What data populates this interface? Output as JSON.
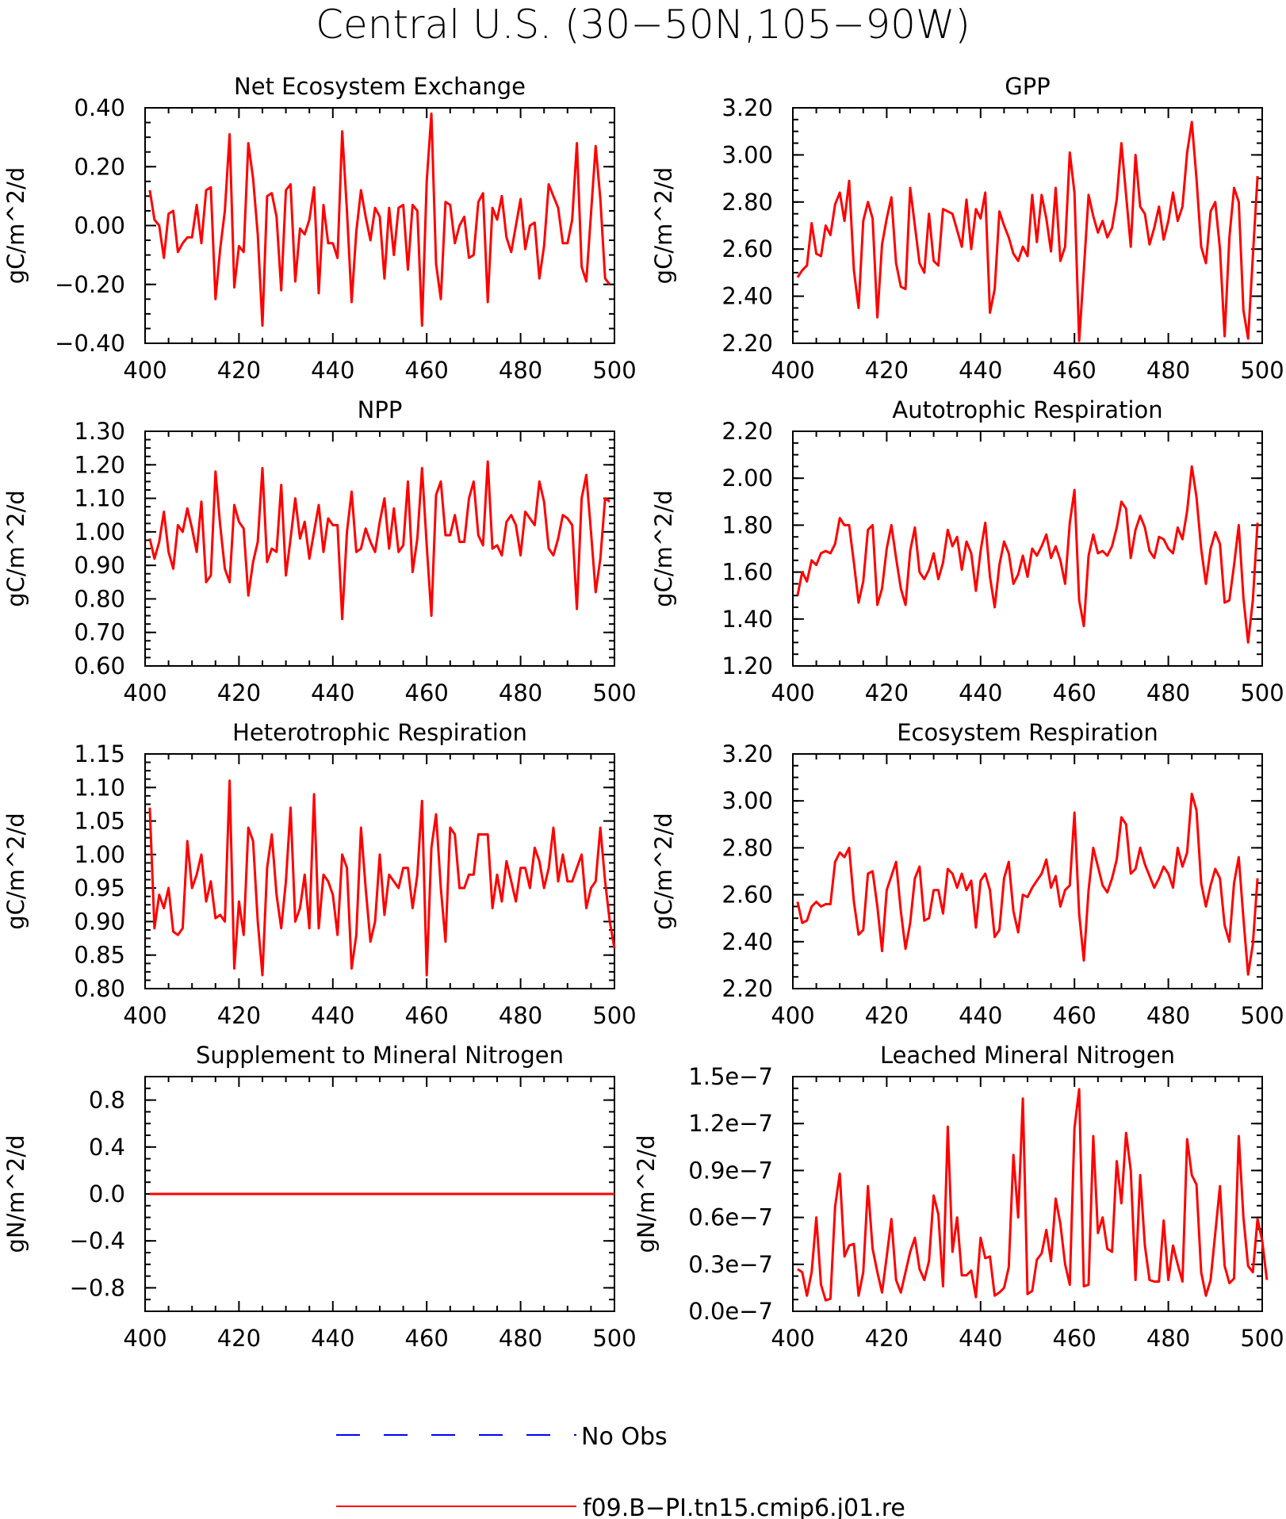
{
  "figure_title": "Central U.S. (30−50N,105−90W)",
  "legend": {
    "items": [
      {
        "label": "No Obs",
        "color": "#0000ff",
        "dashed": true
      },
      {
        "label": "f09.B−PI.tn15.cmip6.j01.re",
        "color": "#ff0000",
        "dashed": false
      }
    ]
  },
  "series_color": "#ff0000",
  "chart_data": [
    {
      "type": "line",
      "title": "Net Ecosystem Exchange",
      "ylabel": "gC/m^2/d",
      "xlim": [
        400,
        500
      ],
      "ylim": [
        -0.4,
        0.4
      ],
      "xticks": [
        "400",
        "420",
        "440",
        "460",
        "480",
        "500"
      ],
      "yticks": [
        "−0.40",
        "−0.20",
        "0.00",
        "0.20",
        "0.40"
      ],
      "x_start": 401,
      "values": [
        0.12,
        0.02,
        0.0,
        -0.11,
        0.04,
        0.05,
        -0.09,
        -0.06,
        -0.04,
        -0.04,
        0.07,
        -0.06,
        0.12,
        0.13,
        -0.25,
        -0.08,
        0.05,
        0.31,
        -0.21,
        -0.07,
        -0.09,
        0.28,
        0.16,
        -0.03,
        -0.34,
        0.1,
        0.11,
        0.03,
        -0.22,
        0.12,
        0.14,
        -0.19,
        -0.01,
        -0.03,
        0.02,
        0.13,
        -0.23,
        0.07,
        -0.06,
        -0.06,
        -0.11,
        0.32,
        0.05,
        -0.26,
        -0.02,
        0.12,
        0.03,
        -0.05,
        0.06,
        0.03,
        -0.18,
        0.06,
        -0.1,
        0.06,
        0.07,
        -0.15,
        0.07,
        0.05,
        -0.34,
        0.15,
        0.38,
        -0.13,
        -0.25,
        0.08,
        0.07,
        -0.06,
        0.0,
        0.03,
        -0.11,
        -0.1,
        0.08,
        0.11,
        -0.26,
        0.06,
        0.02,
        0.1,
        -0.04,
        -0.09,
        0.0,
        0.09,
        -0.08,
        0.0,
        0.01,
        -0.18,
        -0.07,
        0.14,
        0.1,
        0.06,
        -0.06,
        -0.06,
        0.02,
        0.28,
        -0.14,
        -0.19,
        0.04,
        0.27,
        0.09,
        -0.18,
        -0.2
      ]
    },
    {
      "type": "line",
      "title": "GPP",
      "ylabel": "gC/m^2/d",
      "xlim": [
        400,
        500
      ],
      "ylim": [
        2.2,
        3.2
      ],
      "xticks": [
        "400",
        "420",
        "440",
        "460",
        "480",
        "500"
      ],
      "yticks": [
        "2.20",
        "2.40",
        "2.60",
        "2.80",
        "3.00",
        "3.20"
      ],
      "x_start": 401,
      "values": [
        2.48,
        2.51,
        2.53,
        2.71,
        2.58,
        2.57,
        2.7,
        2.66,
        2.79,
        2.84,
        2.72,
        2.89,
        2.51,
        2.35,
        2.72,
        2.8,
        2.73,
        2.31,
        2.62,
        2.73,
        2.82,
        2.54,
        2.44,
        2.43,
        2.86,
        2.7,
        2.54,
        2.5,
        2.75,
        2.55,
        2.53,
        2.77,
        2.76,
        2.75,
        2.68,
        2.61,
        2.81,
        2.6,
        2.77,
        2.73,
        2.84,
        2.33,
        2.43,
        2.76,
        2.7,
        2.65,
        2.58,
        2.55,
        2.61,
        2.57,
        2.83,
        2.63,
        2.83,
        2.73,
        2.59,
        2.86,
        2.55,
        2.61,
        3.01,
        2.84,
        2.21,
        2.51,
        2.83,
        2.74,
        2.67,
        2.72,
        2.65,
        2.69,
        2.81,
        3.05,
        2.83,
        2.61,
        3.0,
        2.78,
        2.75,
        2.62,
        2.69,
        2.78,
        2.64,
        2.72,
        2.84,
        2.72,
        2.78,
        3.01,
        3.14,
        2.9,
        2.61,
        2.54,
        2.76,
        2.8,
        2.6,
        2.23,
        2.65,
        2.86,
        2.8,
        2.34,
        2.22,
        2.57,
        2.91
      ]
    },
    {
      "type": "line",
      "title": "NPP",
      "ylabel": "gC/m^2/d",
      "xlim": [
        400,
        500
      ],
      "ylim": [
        0.6,
        1.3
      ],
      "xticks": [
        "400",
        "420",
        "440",
        "460",
        "480",
        "500"
      ],
      "yticks": [
        "0.60",
        "0.70",
        "0.80",
        "0.90",
        "1.00",
        "1.10",
        "1.20",
        "1.30"
      ],
      "x_start": 401,
      "values": [
        0.98,
        0.92,
        0.97,
        1.06,
        0.94,
        0.89,
        1.02,
        1.0,
        1.07,
        1.01,
        0.94,
        1.09,
        0.85,
        0.87,
        1.18,
        1.02,
        0.89,
        0.85,
        1.08,
        1.03,
        1.01,
        0.81,
        0.91,
        0.97,
        1.19,
        0.91,
        0.95,
        0.94,
        1.14,
        0.87,
        0.98,
        1.1,
        0.98,
        1.03,
        0.92,
        1.0,
        1.08,
        0.94,
        1.04,
        1.02,
        1.02,
        0.74,
        1.0,
        1.12,
        0.94,
        0.95,
        1.01,
        0.97,
        0.94,
        1.03,
        1.1,
        0.95,
        1.07,
        0.94,
        0.96,
        1.15,
        0.88,
        0.98,
        1.19,
        0.96,
        0.75,
        1.11,
        1.15,
        0.99,
        0.99,
        1.05,
        0.97,
        0.97,
        1.1,
        1.15,
        0.99,
        0.96,
        1.21,
        0.95,
        0.96,
        0.93,
        1.03,
        1.05,
        1.02,
        0.93,
        1.06,
        1.04,
        1.02,
        1.15,
        1.09,
        0.95,
        0.93,
        0.98,
        1.05,
        1.04,
        1.02,
        0.77,
        1.1,
        1.17,
        1.0,
        0.82,
        0.92,
        1.1,
        1.09
      ]
    },
    {
      "type": "line",
      "title": "Autotrophic Respiration",
      "ylabel": "gC/m^2/d",
      "xlim": [
        400,
        500
      ],
      "ylim": [
        1.2,
        2.2
      ],
      "xticks": [
        "400",
        "420",
        "440",
        "460",
        "480",
        "500"
      ],
      "yticks": [
        "1.20",
        "1.40",
        "1.60",
        "1.80",
        "2.00",
        "2.20"
      ],
      "x_start": 401,
      "values": [
        1.5,
        1.6,
        1.56,
        1.65,
        1.63,
        1.68,
        1.69,
        1.68,
        1.72,
        1.83,
        1.8,
        1.8,
        1.64,
        1.47,
        1.56,
        1.78,
        1.8,
        1.46,
        1.53,
        1.7,
        1.8,
        1.66,
        1.53,
        1.46,
        1.69,
        1.79,
        1.6,
        1.57,
        1.61,
        1.68,
        1.57,
        1.64,
        1.78,
        1.71,
        1.75,
        1.61,
        1.73,
        1.68,
        1.52,
        1.69,
        1.81,
        1.58,
        1.45,
        1.63,
        1.73,
        1.68,
        1.55,
        1.59,
        1.67,
        1.58,
        1.7,
        1.67,
        1.71,
        1.76,
        1.66,
        1.71,
        1.65,
        1.55,
        1.81,
        1.95,
        1.48,
        1.37,
        1.67,
        1.76,
        1.68,
        1.69,
        1.67,
        1.71,
        1.79,
        1.9,
        1.87,
        1.66,
        1.78,
        1.84,
        1.79,
        1.69,
        1.66,
        1.75,
        1.74,
        1.7,
        1.68,
        1.79,
        1.74,
        1.86,
        2.05,
        1.92,
        1.7,
        1.55,
        1.7,
        1.77,
        1.72,
        1.47,
        1.48,
        1.63,
        1.8,
        1.49,
        1.3,
        1.48,
        1.81
      ]
    },
    {
      "type": "line",
      "title": "Heterotrophic Respiration",
      "ylabel": "gC/m^2/d",
      "xlim": [
        400,
        500
      ],
      "ylim": [
        0.8,
        1.15
      ],
      "xticks": [
        "400",
        "420",
        "440",
        "460",
        "480",
        "500"
      ],
      "yticks": [
        "0.80",
        "0.85",
        "0.90",
        "0.95",
        "1.00",
        "1.05",
        "1.10",
        "1.15"
      ],
      "x_start": 401,
      "values": [
        1.07,
        0.89,
        0.94,
        0.92,
        0.95,
        0.885,
        0.88,
        0.89,
        1.02,
        0.95,
        0.97,
        1.0,
        0.93,
        0.96,
        0.905,
        0.91,
        0.9,
        1.11,
        0.83,
        0.93,
        0.88,
        1.04,
        1.02,
        0.9,
        0.82,
        0.98,
        1.03,
        0.94,
        0.89,
        0.96,
        1.07,
        0.9,
        0.92,
        0.97,
        0.89,
        1.09,
        0.89,
        0.97,
        0.96,
        0.94,
        0.88,
        1.0,
        0.98,
        0.83,
        0.88,
        1.04,
        0.95,
        0.87,
        0.9,
        1.0,
        0.91,
        0.97,
        0.96,
        0.95,
        0.98,
        0.98,
        0.92,
        0.97,
        1.08,
        0.82,
        1.01,
        1.06,
        0.95,
        0.87,
        1.04,
        1.03,
        0.95,
        0.95,
        0.97,
        0.97,
        1.03,
        1.03,
        1.03,
        0.92,
        0.97,
        0.93,
        0.99,
        0.96,
        0.93,
        0.98,
        0.98,
        0.95,
        1.01,
        0.99,
        0.95,
        0.98,
        1.04,
        0.96,
        1.0,
        0.96,
        0.96,
        0.98,
        1.0,
        0.92,
        0.95,
        0.96,
        1.04,
        0.96,
        0.9,
        0.86
      ]
    },
    {
      "type": "line",
      "title": "Ecosystem Respiration",
      "ylabel": "gC/m^2/d",
      "xlim": [
        400,
        500
      ],
      "ylim": [
        2.2,
        3.2
      ],
      "xticks": [
        "400",
        "420",
        "440",
        "460",
        "480",
        "500"
      ],
      "yticks": [
        "2.20",
        "2.40",
        "2.60",
        "2.80",
        "3.00",
        "3.20"
      ],
      "x_start": 401,
      "values": [
        2.57,
        2.48,
        2.49,
        2.55,
        2.57,
        2.55,
        2.56,
        2.56,
        2.74,
        2.78,
        2.76,
        2.8,
        2.57,
        2.43,
        2.45,
        2.69,
        2.7,
        2.55,
        2.36,
        2.62,
        2.68,
        2.74,
        2.53,
        2.37,
        2.48,
        2.67,
        2.72,
        2.49,
        2.5,
        2.62,
        2.62,
        2.52,
        2.71,
        2.69,
        2.63,
        2.69,
        2.62,
        2.66,
        2.46,
        2.66,
        2.69,
        2.62,
        2.42,
        2.45,
        2.67,
        2.74,
        2.53,
        2.44,
        2.6,
        2.59,
        2.63,
        2.66,
        2.69,
        2.75,
        2.63,
        2.68,
        2.55,
        2.62,
        2.64,
        2.95,
        2.52,
        2.32,
        2.62,
        2.8,
        2.72,
        2.64,
        2.61,
        2.67,
        2.75,
        2.93,
        2.9,
        2.69,
        2.71,
        2.8,
        2.73,
        2.68,
        2.63,
        2.67,
        2.72,
        2.69,
        2.63,
        2.8,
        2.72,
        2.78,
        3.03,
        2.96,
        2.65,
        2.55,
        2.64,
        2.71,
        2.67,
        2.47,
        2.4,
        2.65,
        2.76,
        2.5,
        2.26,
        2.39,
        2.67
      ]
    },
    {
      "type": "line",
      "title": "Supplement to Mineral Nitrogen",
      "ylabel": "gN/m^2/d",
      "xlim": [
        400,
        500
      ],
      "ylim": [
        -1.0,
        1.0
      ],
      "xticks": [
        "400",
        "420",
        "440",
        "460",
        "480",
        "500"
      ],
      "yticks": [
        "−0.8",
        "−0.4",
        "0.0",
        "0.4",
        "0.8"
      ],
      "ytick_values": [
        -0.8,
        -0.4,
        0.0,
        0.4,
        0.8
      ],
      "x_start": 401,
      "values": [
        0,
        0,
        0,
        0,
        0,
        0,
        0,
        0,
        0,
        0,
        0,
        0,
        0,
        0,
        0,
        0,
        0,
        0,
        0,
        0,
        0,
        0,
        0,
        0,
        0,
        0,
        0,
        0,
        0,
        0,
        0,
        0,
        0,
        0,
        0,
        0,
        0,
        0,
        0,
        0,
        0,
        0,
        0,
        0,
        0,
        0,
        0,
        0,
        0,
        0,
        0,
        0,
        0,
        0,
        0,
        0,
        0,
        0,
        0,
        0,
        0,
        0,
        0,
        0,
        0,
        0,
        0,
        0,
        0,
        0,
        0,
        0,
        0,
        0,
        0,
        0,
        0,
        0,
        0,
        0,
        0,
        0,
        0,
        0,
        0,
        0,
        0,
        0,
        0,
        0,
        0,
        0,
        0,
        0,
        0,
        0,
        0,
        0,
        0,
        0
      ]
    },
    {
      "type": "line",
      "title": "Leached Mineral Nitrogen",
      "ylabel": "gN/m^2/d",
      "xlim": [
        400,
        500
      ],
      "ylim": [
        0.0,
        1.5
      ],
      "y_unit_label": "e−7",
      "xticks": [
        "400",
        "420",
        "440",
        "460",
        "480",
        "500"
      ],
      "yticks": [
        "0.0e−7",
        "0.3e−7",
        "0.6e−7",
        "0.9e−7",
        "1.2e−7",
        "1.5e−7"
      ],
      "x_start": 401,
      "values": [
        0.27,
        0.25,
        0.1,
        0.25,
        0.6,
        0.17,
        0.07,
        0.08,
        0.67,
        0.88,
        0.35,
        0.42,
        0.43,
        0.1,
        0.25,
        0.8,
        0.4,
        0.25,
        0.12,
        0.35,
        0.59,
        0.2,
        0.12,
        0.25,
        0.38,
        0.47,
        0.27,
        0.2,
        0.32,
        0.74,
        0.62,
        0.16,
        1.18,
        0.38,
        0.6,
        0.23,
        0.23,
        0.26,
        0.09,
        0.47,
        0.34,
        0.35,
        0.1,
        0.12,
        0.15,
        0.28,
        1.0,
        0.6,
        1.36,
        0.11,
        0.13,
        0.33,
        0.37,
        0.52,
        0.32,
        0.72,
        0.56,
        0.3,
        0.17,
        1.17,
        1.42,
        0.16,
        0.17,
        1.12,
        0.5,
        0.6,
        0.4,
        0.38,
        0.96,
        0.69,
        1.14,
        0.9,
        0.2,
        0.87,
        0.42,
        0.2,
        0.19,
        0.19,
        0.58,
        0.2,
        0.42,
        0.3,
        0.19,
        1.1,
        0.87,
        0.81,
        0.25,
        0.1,
        0.2,
        0.5,
        0.8,
        0.29,
        0.18,
        0.21,
        1.12,
        0.6,
        0.29,
        0.25,
        0.59,
        0.45,
        0.2
      ]
    }
  ]
}
